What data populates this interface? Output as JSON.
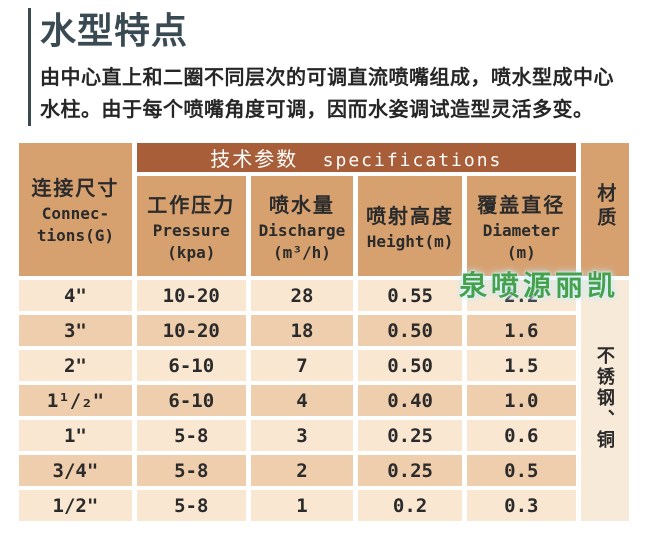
{
  "header": {
    "title": "水型特点",
    "description": "由中心直上和二圈不同层次的可调直流喷嘴组成，喷水型成中心\n水柱。由于每个喷嘴角度可调，因而水姿调试造型灵活多变。"
  },
  "table": {
    "band": {
      "zh": "技术参数",
      "en": "specifications"
    },
    "headers": {
      "connections": {
        "zh": "连接尺寸",
        "en": "Connec-\ntions(G)"
      },
      "pressure": {
        "zh": "工作压力",
        "en": "Pressure\n(kpa)"
      },
      "discharge": {
        "zh": "喷水量",
        "en": "Discharge\n(m³/h)"
      },
      "height": {
        "zh": "喷射高度",
        "en": "Height(m)"
      },
      "diameter": {
        "zh": "覆盖直径",
        "en": "Diameter\n(m)"
      },
      "material": {
        "zh": "材质"
      }
    },
    "material_value": "不锈钢、铜",
    "rows": [
      {
        "size": "4\"",
        "pressure": "10-20",
        "discharge": "28",
        "height": "0.55",
        "diameter": "2.2"
      },
      {
        "size": "3\"",
        "pressure": "10-20",
        "discharge": "18",
        "height": "0.50",
        "diameter": "1.6"
      },
      {
        "size": "2\"",
        "pressure": "6-10",
        "discharge": "7",
        "height": "0.50",
        "diameter": "1.5"
      },
      {
        "size": "1¹/₂\"",
        "pressure": "6-10",
        "discharge": "4",
        "height": "0.40",
        "diameter": "1.0"
      },
      {
        "size": "1\"",
        "pressure": "5-8",
        "discharge": "3",
        "height": "0.25",
        "diameter": "0.6"
      },
      {
        "size": "3/4\"",
        "pressure": "5-8",
        "discharge": "2",
        "height": "0.25",
        "diameter": "0.5"
      },
      {
        "size": "1/2\"",
        "pressure": "5-8",
        "discharge": "1",
        "height": "0.2",
        "diameter": "0.3"
      }
    ]
  },
  "watermark": {
    "text": "泉喷源丽凯",
    "color": "#45a14b"
  },
  "colors": {
    "title": "#3a4a52",
    "band_bg": "#a85e39",
    "header_cell_bg": "#d6a06f",
    "row_light_bg": "#f9e7d2",
    "row_dark_bg": "#efcead",
    "material_body_bg": "#f8ead8",
    "watermark_green": "#45a14b"
  }
}
